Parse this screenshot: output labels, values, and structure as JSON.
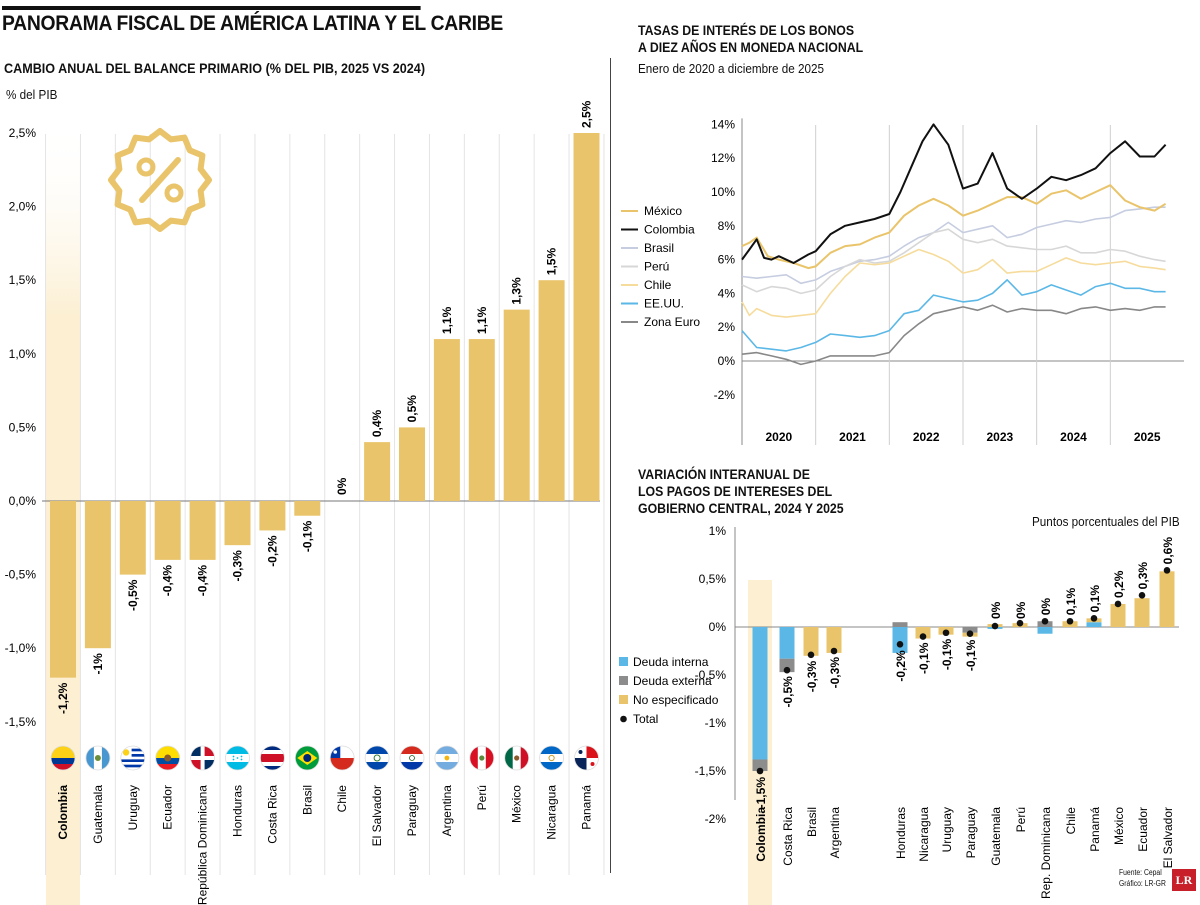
{
  "header": {
    "main_title": "PANORAMA FISCAL DE AMÉRICA LATINA Y EL CARIBE",
    "left_title": "CAMBIO ANUAL DEL BALANCE PRIMARIO (% DEL PIB, 2025 VS 2024)",
    "left_unit": "% del PIB",
    "right_top_title_line1": "TASAS DE INTERÉS DE LOS BONOS",
    "right_top_title_line2": "A DIEZ AÑOS EN MONEDA NACIONAL",
    "right_top_subtitle": "Enero de 2020 a diciembre de 2025",
    "right_bottom_title_line1": "VARIACIÓN INTERANUAL DE",
    "right_bottom_title_line2": "LOS PAGOS DE INTERESES DEL",
    "right_bottom_title_line3": "GOBIERNO CENTRAL, 2024 Y 2025",
    "right_bottom_unit": "Puntos porcentuales del PIB"
  },
  "footer": {
    "source": "Fuente: Cepal",
    "graphic": "Gráfico: LR-GR",
    "logo": "LR"
  },
  "colors": {
    "gold": "#e9c46a",
    "highlight": "#fcefd2",
    "internal_debt": "#5bb8e6",
    "external_debt": "#8c8c8c",
    "black": "#111111"
  },
  "chart_data": [
    {
      "id": "balance-primario",
      "type": "bar",
      "title": "CAMBIO ANUAL DEL BALANCE PRIMARIO (% DEL PIB, 2025 VS 2024)",
      "ylabel": "% del PIB",
      "ylim": [
        -1.5,
        2.5
      ],
      "yticks": [
        "2,5%",
        "2,0%",
        "1,5%",
        "1,0%",
        "0,5%",
        "0,0%",
        "-0,5%",
        "-1,0%",
        "-1,5%"
      ],
      "ytick_values": [
        2.5,
        2.0,
        1.5,
        1.0,
        0.5,
        0.0,
        -0.5,
        -1.0,
        -1.5
      ],
      "categories": [
        "Colombia",
        "Guatemala",
        "Uruguay",
        "Ecuador",
        "República Dominicana",
        "Honduras",
        "Costa Rica",
        "Brasil",
        "Chile",
        "El Salvador",
        "Paraguay",
        "Argentina",
        "Perú",
        "México",
        "Nicaragua",
        "Panamá"
      ],
      "values": [
        -1.2,
        -1.0,
        -0.5,
        -0.4,
        -0.4,
        -0.3,
        -0.2,
        -0.1,
        0.0,
        0.4,
        0.5,
        1.1,
        1.1,
        1.3,
        1.5,
        2.5
      ],
      "labels": [
        "-1,2%",
        "-1%",
        "-0,5%",
        "-0,4%",
        "-0,4%",
        "-0,3%",
        "-0,2%",
        "-0,1%",
        "0%",
        "0,4%",
        "0,5%",
        "1,1%",
        "1,1%",
        "1,3%",
        "1,5%",
        "2,5%"
      ],
      "highlight": "Colombia",
      "flags": [
        "colombia-flag-icon",
        "guatemala-flag-icon",
        "uruguay-flag-icon",
        "ecuador-flag-icon",
        "dominican-republic-flag-icon",
        "honduras-flag-icon",
        "costa-rica-flag-icon",
        "brazil-flag-icon",
        "chile-flag-icon",
        "el-salvador-flag-icon",
        "paraguay-flag-icon",
        "argentina-flag-icon",
        "peru-flag-icon",
        "mexico-flag-icon",
        "nicaragua-flag-icon",
        "panama-flag-icon"
      ],
      "icon": "percent-badge-icon"
    },
    {
      "id": "tasas-bonos",
      "type": "line",
      "title": "TASAS DE INTERÉS DE LOS BONOS A DIEZ AÑOS EN MONEDA NACIONAL",
      "subtitle": "Enero de 2020 a diciembre de 2025",
      "ylim": [
        -4,
        14
      ],
      "yticks": [
        "14%",
        "12%",
        "10%",
        "8%",
        "6%",
        "4%",
        "2%",
        "0%",
        "-2%"
      ],
      "ytick_values": [
        14,
        12,
        10,
        8,
        6,
        4,
        2,
        0,
        -2
      ],
      "xlim": [
        2020.0,
        2026.0
      ],
      "xticks": [
        "2020",
        "2021",
        "2022",
        "2023",
        "2024",
        "2025"
      ],
      "legend": "left",
      "series": [
        {
          "name": "México",
          "color": "#e9c46a",
          "width": 2,
          "x": [
            2020.0,
            2020.1,
            2020.2,
            2020.35,
            2020.5,
            2020.7,
            2020.9,
            2021.0,
            2021.2,
            2021.4,
            2021.6,
            2021.8,
            2022.0,
            2022.2,
            2022.4,
            2022.6,
            2022.8,
            2023.0,
            2023.2,
            2023.4,
            2023.6,
            2023.8,
            2024.0,
            2024.2,
            2024.4,
            2024.6,
            2024.8,
            2025.0,
            2025.2,
            2025.4,
            2025.6,
            2025.75
          ],
          "y": [
            6.8,
            7.0,
            7.3,
            6.2,
            6.0,
            5.8,
            5.5,
            5.6,
            6.4,
            6.8,
            6.9,
            7.3,
            7.6,
            8.6,
            9.2,
            9.6,
            9.2,
            8.6,
            8.9,
            9.3,
            9.7,
            9.7,
            9.3,
            9.9,
            10.1,
            9.6,
            10.0,
            10.4,
            9.5,
            9.1,
            8.9,
            9.3
          ]
        },
        {
          "name": "Colombia",
          "color": "#111111",
          "width": 2,
          "x": [
            2020.0,
            2020.1,
            2020.2,
            2020.3,
            2020.4,
            2020.5,
            2020.7,
            2020.9,
            2021.0,
            2021.2,
            2021.4,
            2021.6,
            2021.8,
            2022.0,
            2022.15,
            2022.3,
            2022.45,
            2022.6,
            2022.8,
            2023.0,
            2023.2,
            2023.4,
            2023.6,
            2023.8,
            2024.0,
            2024.2,
            2024.4,
            2024.6,
            2024.8,
            2025.0,
            2025.2,
            2025.4,
            2025.6,
            2025.75
          ],
          "y": [
            6.0,
            6.6,
            7.2,
            6.1,
            6.0,
            6.2,
            5.8,
            6.3,
            6.5,
            7.5,
            8.0,
            8.2,
            8.4,
            8.7,
            10.0,
            11.5,
            13.0,
            14.0,
            12.8,
            10.2,
            10.5,
            12.3,
            10.2,
            9.6,
            10.2,
            10.9,
            10.7,
            11.0,
            11.4,
            12.3,
            13.0,
            12.1,
            12.1,
            12.8
          ]
        },
        {
          "name": "Brasil",
          "color": "#c6cde0",
          "width": 1.6,
          "x": [
            2020.0,
            2020.2,
            2020.4,
            2020.6,
            2020.8,
            2021.0,
            2021.2,
            2021.4,
            2021.6,
            2021.8,
            2022.0,
            2022.2,
            2022.4,
            2022.6,
            2022.8,
            2023.0,
            2023.2,
            2023.4,
            2023.6,
            2023.8,
            2024.0,
            2024.2,
            2024.4,
            2024.6,
            2024.8,
            2025.0,
            2025.2,
            2025.4,
            2025.6,
            2025.75
          ],
          "y": [
            5.0,
            4.9,
            5.0,
            5.1,
            4.6,
            4.8,
            5.3,
            5.6,
            5.9,
            6.0,
            6.2,
            6.8,
            7.3,
            7.6,
            8.2,
            7.6,
            7.8,
            8.0,
            7.3,
            7.5,
            7.9,
            8.1,
            8.3,
            8.2,
            8.4,
            8.5,
            8.9,
            9.0,
            9.1,
            9.1
          ]
        },
        {
          "name": "Perú",
          "color": "#d7d7d7",
          "width": 1.6,
          "x": [
            2020.0,
            2020.2,
            2020.4,
            2020.6,
            2020.8,
            2021.0,
            2021.2,
            2021.4,
            2021.6,
            2021.8,
            2022.0,
            2022.2,
            2022.4,
            2022.6,
            2022.8,
            2023.0,
            2023.2,
            2023.4,
            2023.6,
            2023.8,
            2024.0,
            2024.2,
            2024.4,
            2024.6,
            2024.8,
            2025.0,
            2025.2,
            2025.4,
            2025.6,
            2025.75
          ],
          "y": [
            4.5,
            4.1,
            4.4,
            4.3,
            4.0,
            4.2,
            5.0,
            5.6,
            6.0,
            5.8,
            5.9,
            6.4,
            7.0,
            7.6,
            7.8,
            7.2,
            7.0,
            7.2,
            6.8,
            6.7,
            6.6,
            6.6,
            6.8,
            6.4,
            6.4,
            6.6,
            6.5,
            6.2,
            6.0,
            5.9
          ]
        },
        {
          "name": "Chile",
          "color": "#f6dc9c",
          "width": 1.6,
          "x": [
            2020.0,
            2020.1,
            2020.2,
            2020.4,
            2020.6,
            2020.8,
            2021.0,
            2021.2,
            2021.4,
            2021.6,
            2021.8,
            2022.0,
            2022.2,
            2022.4,
            2022.6,
            2022.8,
            2023.0,
            2023.2,
            2023.4,
            2023.6,
            2023.8,
            2024.0,
            2024.2,
            2024.4,
            2024.6,
            2024.8,
            2025.0,
            2025.2,
            2025.4,
            2025.6,
            2025.75
          ],
          "y": [
            3.5,
            2.7,
            3.1,
            2.7,
            2.6,
            2.7,
            2.8,
            4.0,
            5.0,
            5.8,
            5.7,
            5.8,
            6.2,
            6.6,
            6.3,
            5.9,
            5.2,
            5.4,
            6.0,
            5.2,
            5.3,
            5.3,
            5.7,
            6.1,
            5.8,
            5.7,
            5.8,
            5.9,
            5.6,
            5.5,
            5.4
          ]
        },
        {
          "name": "EE.UU.",
          "color": "#5bb8e6",
          "width": 1.6,
          "x": [
            2020.0,
            2020.2,
            2020.4,
            2020.6,
            2020.8,
            2021.0,
            2021.2,
            2021.4,
            2021.6,
            2021.8,
            2022.0,
            2022.2,
            2022.4,
            2022.6,
            2022.8,
            2023.0,
            2023.2,
            2023.4,
            2023.6,
            2023.8,
            2024.0,
            2024.2,
            2024.4,
            2024.6,
            2024.8,
            2025.0,
            2025.2,
            2025.4,
            2025.6,
            2025.75
          ],
          "y": [
            1.8,
            0.8,
            0.7,
            0.6,
            0.8,
            1.1,
            1.6,
            1.5,
            1.4,
            1.5,
            1.8,
            2.8,
            3.0,
            3.9,
            3.7,
            3.5,
            3.6,
            4.0,
            4.8,
            3.9,
            4.1,
            4.5,
            4.2,
            3.9,
            4.4,
            4.6,
            4.3,
            4.3,
            4.1,
            4.1
          ]
        },
        {
          "name": "Zona Euro",
          "color": "#888888",
          "width": 1.6,
          "x": [
            2020.0,
            2020.2,
            2020.4,
            2020.6,
            2020.8,
            2021.0,
            2021.2,
            2021.4,
            2021.6,
            2021.8,
            2022.0,
            2022.2,
            2022.4,
            2022.6,
            2022.8,
            2023.0,
            2023.2,
            2023.4,
            2023.6,
            2023.8,
            2024.0,
            2024.2,
            2024.4,
            2024.6,
            2024.8,
            2025.0,
            2025.2,
            2025.4,
            2025.6,
            2025.75
          ],
          "y": [
            0.4,
            0.5,
            0.3,
            0.1,
            -0.2,
            0.0,
            0.3,
            0.3,
            0.3,
            0.3,
            0.5,
            1.5,
            2.2,
            2.8,
            3.0,
            3.2,
            3.0,
            3.3,
            2.9,
            3.1,
            3.0,
            3.0,
            2.8,
            3.1,
            3.2,
            3.0,
            3.1,
            3.0,
            3.2,
            3.2
          ]
        }
      ]
    },
    {
      "id": "pagos-intereses",
      "type": "bar",
      "stacked": true,
      "title": "VARIACIÓN INTERANUAL DE LOS PAGOS DE INTERESES DEL GOBIERNO CENTRAL, 2024 Y 2025",
      "ylabel": "Puntos porcentuales del PIB",
      "ylim": [
        -2.0,
        1.0
      ],
      "yticks": [
        "1%",
        "0,5%",
        "0%",
        "-0,5%",
        "-1%",
        "-1,5%",
        "-2%"
      ],
      "ytick_values": [
        1.0,
        0.5,
        0.0,
        -0.5,
        -1.0,
        -1.5,
        -2.0
      ],
      "legend": "left",
      "series_names": [
        "Deuda interna",
        "Deuda externa",
        "No especificado",
        "Total"
      ],
      "categories": [
        "Colombia",
        "Costa Rica",
        "Brasil",
        "Argentina",
        "Honduras",
        "Nicaragua",
        "Uruguay",
        "Paraguay",
        "Guatemala",
        "Perú",
        "Rep. Dominicana",
        "Chile",
        "Panamá",
        "México",
        "Ecuador",
        "El Salvador"
      ],
      "group_break_after": "Argentina",
      "internal": [
        -1.38,
        -0.33,
        0.0,
        0.0,
        -0.27,
        0.0,
        0.0,
        0.0,
        -0.02,
        0.0,
        -0.07,
        0.0,
        0.05,
        0.0,
        0.0,
        0.0
      ],
      "external": [
        -0.12,
        -0.14,
        0.0,
        0.0,
        0.05,
        0.0,
        0.0,
        -0.06,
        0.0,
        0.0,
        0.06,
        0.0,
        0.0,
        0.0,
        0.0,
        0.0
      ],
      "unspecified": [
        0.0,
        0.0,
        -0.3,
        -0.27,
        0.0,
        -0.12,
        -0.08,
        -0.04,
        0.03,
        0.04,
        0.0,
        0.06,
        0.04,
        0.24,
        0.3,
        0.58
      ],
      "totals": [
        -1.5,
        -0.45,
        -0.29,
        -0.25,
        -0.18,
        -0.1,
        -0.06,
        -0.07,
        0.01,
        0.04,
        0.06,
        0.06,
        0.09,
        0.24,
        0.33,
        0.59
      ],
      "labels": [
        "-1,5%",
        "-0,5%",
        "-0,3%",
        "-0,3%",
        "-0,2%",
        "-0,1%",
        "-0,1%",
        "-0,1%",
        "0%",
        "0%",
        "0%",
        "0,1%",
        "0,1%",
        "0,2%",
        "0,3%",
        "0,6%"
      ],
      "highlight": "Colombia"
    }
  ]
}
